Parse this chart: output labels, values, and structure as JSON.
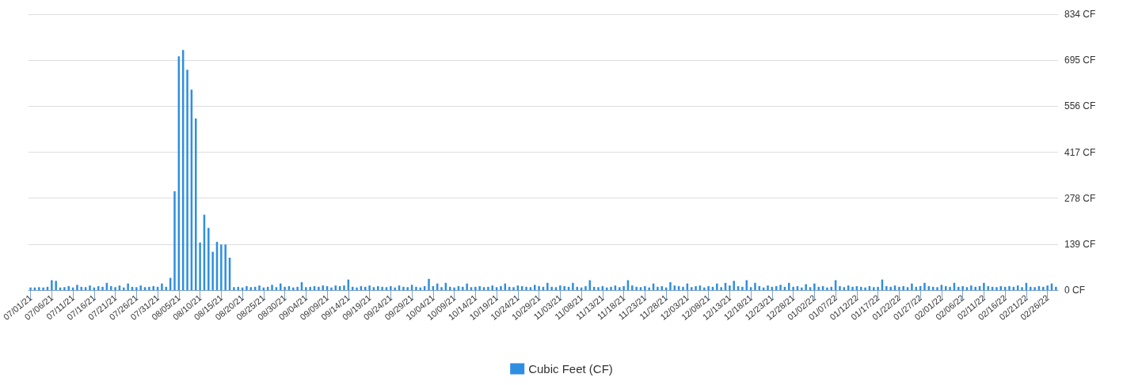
{
  "chart_data": {
    "type": "bar",
    "categories": [
      "07/01/21",
      null,
      null,
      null,
      null,
      "07/06/21",
      null,
      null,
      null,
      null,
      "07/11/21",
      null,
      null,
      null,
      null,
      "07/16/21",
      null,
      null,
      null,
      null,
      "07/21/21",
      null,
      null,
      null,
      null,
      "07/26/21",
      null,
      null,
      null,
      null,
      "07/31/21",
      null,
      null,
      null,
      null,
      "08/05/21",
      null,
      null,
      null,
      null,
      "08/10/21",
      null,
      null,
      null,
      null,
      "08/15/21",
      null,
      null,
      null,
      null,
      "08/20/21",
      null,
      null,
      null,
      null,
      "08/25/21",
      null,
      null,
      null,
      null,
      "08/30/21",
      null,
      null,
      null,
      null,
      "09/04/21",
      null,
      null,
      null,
      null,
      "09/09/21",
      null,
      null,
      null,
      null,
      "09/14/21",
      null,
      null,
      null,
      null,
      "09/19/21",
      null,
      null,
      null,
      null,
      "09/24/21",
      null,
      null,
      null,
      null,
      "09/29/21",
      null,
      null,
      null,
      null,
      "10/04/21",
      null,
      null,
      null,
      null,
      "10/09/21",
      null,
      null,
      null,
      null,
      "10/14/21",
      null,
      null,
      null,
      null,
      "10/19/21",
      null,
      null,
      null,
      null,
      "10/24/21",
      null,
      null,
      null,
      null,
      "10/29/21",
      null,
      null,
      null,
      null,
      "11/03/21",
      null,
      null,
      null,
      null,
      "11/08/21",
      null,
      null,
      null,
      null,
      "11/13/21",
      null,
      null,
      null,
      null,
      "11/18/21",
      null,
      null,
      null,
      null,
      "11/23/21",
      null,
      null,
      null,
      null,
      "11/28/21",
      null,
      null,
      null,
      null,
      "12/03/21",
      null,
      null,
      null,
      null,
      "12/08/21",
      null,
      null,
      null,
      null,
      "12/13/21",
      null,
      null,
      null,
      null,
      "12/18/21",
      null,
      null,
      null,
      null,
      "12/23/21",
      null,
      null,
      null,
      null,
      "12/28/21",
      null,
      null,
      null,
      null,
      "01/02/22",
      null,
      null,
      null,
      null,
      "01/07/22",
      null,
      null,
      null,
      null,
      "01/12/22",
      null,
      null,
      null,
      null,
      "01/17/22",
      null,
      null,
      null,
      null,
      "01/22/22",
      null,
      null,
      null,
      null,
      "01/27/22",
      null,
      null,
      null,
      null,
      "02/01/22",
      null,
      null,
      null,
      null,
      "02/06/22",
      null,
      null,
      null,
      null,
      "02/11/22",
      null,
      null,
      null,
      null,
      "02/16/22",
      null,
      null,
      null,
      null,
      "02/21/22",
      null,
      null,
      null,
      null,
      "02/26/22",
      null,
      null
    ],
    "series": [
      {
        "name": "Cubic Feet (CF)",
        "color": "#2f8ee0",
        "values": [
          8,
          8,
          9,
          8,
          10,
          30,
          28,
          8,
          9,
          12,
          8,
          16,
          10,
          9,
          14,
          8,
          12,
          10,
          22,
          12,
          9,
          14,
          8,
          20,
          10,
          9,
          14,
          9,
          10,
          12,
          10,
          20,
          10,
          37,
          299,
          707,
          726,
          666,
          606,
          519,
          144,
          228,
          188,
          116,
          146,
          138,
          138,
          98,
          9,
          10,
          8,
          12,
          9,
          10,
          14,
          8,
          10,
          16,
          9,
          20,
          10,
          12,
          8,
          10,
          24,
          9,
          10,
          12,
          10,
          14,
          12,
          8,
          14,
          12,
          14,
          32,
          10,
          8,
          12,
          10,
          14,
          9,
          12,
          10,
          9,
          12,
          8,
          14,
          10,
          9,
          16,
          10,
          8,
          12,
          34,
          12,
          20,
          9,
          22,
          10,
          8,
          12,
          10,
          20,
          9,
          10,
          12,
          9,
          10,
          14,
          9,
          12,
          20,
          10,
          9,
          14,
          12,
          10,
          9,
          16,
          12,
          10,
          22,
          10,
          9,
          14,
          12,
          10,
          22,
          10,
          8,
          12,
          30,
          10,
          9,
          12,
          8,
          10,
          14,
          9,
          12,
          30,
          14,
          10,
          9,
          12,
          8,
          20,
          10,
          12,
          8,
          24,
          14,
          12,
          10,
          20,
          9,
          12,
          14,
          8,
          12,
          10,
          20,
          9,
          22,
          14,
          28,
          12,
          10,
          30,
          9,
          22,
          12,
          8,
          14,
          10,
          12,
          16,
          10,
          22,
          10,
          12,
          8,
          18,
          9,
          20,
          10,
          12,
          8,
          10,
          30,
          12,
          9,
          14,
          10,
          12,
          10,
          8,
          12,
          9,
          10,
          32,
          12,
          10,
          14,
          10,
          12,
          9,
          20,
          10,
          12,
          22,
          12,
          10,
          9,
          16,
          12,
          10,
          22,
          10,
          12,
          9,
          14,
          10,
          12,
          22,
          12,
          10,
          9,
          12,
          10,
          12,
          10,
          14,
          9,
          22,
          10,
          9,
          12,
          10,
          14,
          20,
          10
        ]
      }
    ],
    "ylim": [
      0,
      834
    ],
    "yticks": [
      {
        "value": 0,
        "label": "0 CF"
      },
      {
        "value": 139,
        "label": "139 CF"
      },
      {
        "value": 278,
        "label": "278 CF"
      },
      {
        "value": 417,
        "label": "417 CF"
      },
      {
        "value": 556,
        "label": "556 CF"
      },
      {
        "value": 695,
        "label": "695 CF"
      },
      {
        "value": 834,
        "label": "834 CF"
      }
    ],
    "grid": "y",
    "legend": "bottom"
  }
}
